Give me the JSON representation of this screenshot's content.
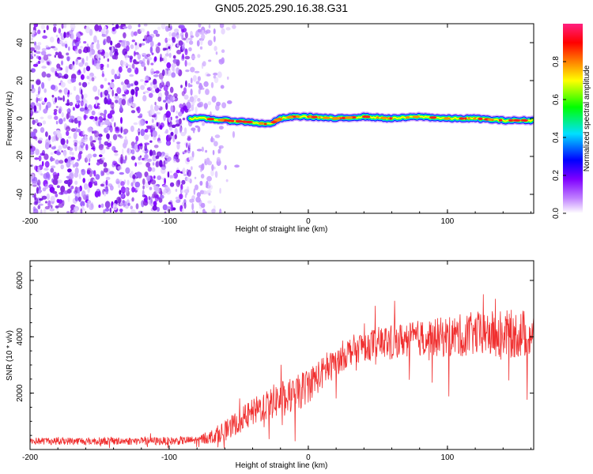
{
  "chart_data": [
    {
      "type": "heatmap",
      "title": "GN05.2025.290.16.38.G31",
      "xlabel": "Height of straight line (km)",
      "ylabel": "Frequency (Hz)",
      "xlim": [
        -200,
        162
      ],
      "ylim": [
        -50,
        50
      ],
      "xticks": [
        -200,
        -100,
        0,
        100
      ],
      "yticks": [
        -40,
        -20,
        0,
        20,
        40
      ],
      "noise_region_x": [
        -200,
        -60
      ],
      "signal_onset_x": -85,
      "signal_line": {
        "x": [
          -85,
          -75,
          -60,
          -40,
          -30,
          -25,
          -20,
          -10,
          0,
          20,
          40,
          60,
          80,
          100,
          120,
          140,
          162
        ],
        "freq": [
          0,
          0,
          -1,
          -2,
          -3,
          -2,
          0,
          1,
          1,
          0,
          1,
          0,
          1,
          0,
          0,
          -1,
          -1
        ]
      },
      "colorbar": {
        "label": "Normalized spectral amplitude",
        "range": [
          0,
          1
        ],
        "ticks": [
          "0.0",
          "0.2",
          "0.4",
          "0.6",
          "0.8"
        ],
        "tick_values": [
          0,
          0.2,
          0.4,
          0.6,
          0.8
        ],
        "colors": [
          "#ffffff",
          "#7f00ff",
          "#0000ff",
          "#00ffff",
          "#00ff00",
          "#ffff00",
          "#ff8000",
          "#ff0000",
          "#ff00aa"
        ]
      }
    },
    {
      "type": "line",
      "xlabel": "Height of straight line (km)",
      "ylabel": "SNR (10 * v/v)",
      "xlim": [
        -200,
        162
      ],
      "ylim": [
        0,
        6700
      ],
      "xticks": [
        -200,
        -100,
        0,
        100
      ],
      "yticks": [
        2000,
        4000,
        6000
      ],
      "line_color": "#f03030",
      "trend": {
        "x": [
          -200,
          -150,
          -100,
          -80,
          -70,
          -60,
          -50,
          -40,
          -30,
          -20,
          -10,
          0,
          10,
          20,
          30,
          40,
          60,
          80,
          100,
          120,
          140,
          162
        ],
        "y": [
          300,
          300,
          300,
          330,
          450,
          650,
          1000,
          1300,
          1600,
          1800,
          1900,
          2300,
          2700,
          3100,
          3500,
          3700,
          3850,
          3950,
          4000,
          4100,
          4100,
          4100
        ]
      },
      "noise_amplitude": {
        "x": [
          -200,
          -80,
          -60,
          -40,
          -20,
          0,
          20,
          40,
          80,
          120,
          162
        ],
        "y": [
          130,
          150,
          350,
          500,
          650,
          650,
          500,
          550,
          650,
          800,
          900
        ]
      }
    }
  ]
}
